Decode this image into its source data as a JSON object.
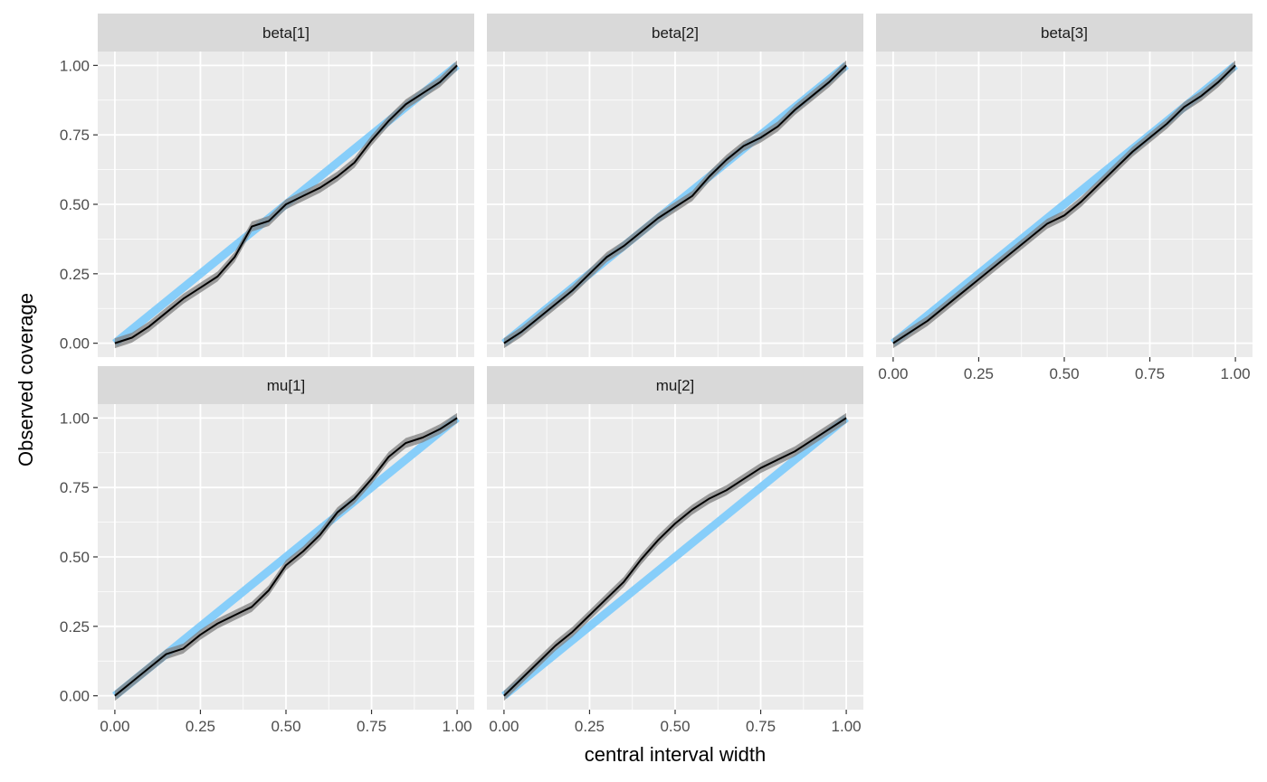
{
  "chart_data": {
    "type": "line",
    "xlabel": "central interval width",
    "ylabel": "Observed coverage",
    "xlim": [
      0,
      1
    ],
    "ylim": [
      0,
      1
    ],
    "x_ticks": [
      "0.00",
      "0.25",
      "0.50",
      "0.75",
      "1.00"
    ],
    "y_ticks": [
      "0.00",
      "0.25",
      "0.50",
      "0.75",
      "1.00"
    ],
    "grid": true,
    "reference_band": {
      "description": "ideal coverage diagonal",
      "color": "#87CEFA"
    },
    "ribbon_color": "#7f7f7f",
    "line_color": "#000000",
    "panels": [
      {
        "name": "beta[1]",
        "x": [
          0.0,
          0.05,
          0.1,
          0.15,
          0.2,
          0.25,
          0.3,
          0.35,
          0.4,
          0.45,
          0.5,
          0.55,
          0.6,
          0.65,
          0.7,
          0.75,
          0.8,
          0.85,
          0.9,
          0.95,
          1.0
        ],
        "y": [
          0.0,
          0.02,
          0.06,
          0.11,
          0.16,
          0.2,
          0.24,
          0.31,
          0.42,
          0.44,
          0.5,
          0.53,
          0.56,
          0.6,
          0.65,
          0.73,
          0.8,
          0.86,
          0.9,
          0.94,
          1.0
        ]
      },
      {
        "name": "beta[2]",
        "x": [
          0.0,
          0.05,
          0.1,
          0.15,
          0.2,
          0.25,
          0.3,
          0.35,
          0.4,
          0.45,
          0.5,
          0.55,
          0.6,
          0.65,
          0.7,
          0.75,
          0.8,
          0.85,
          0.9,
          0.95,
          1.0
        ],
        "y": [
          0.0,
          0.04,
          0.09,
          0.14,
          0.19,
          0.25,
          0.31,
          0.35,
          0.4,
          0.45,
          0.49,
          0.53,
          0.6,
          0.66,
          0.71,
          0.74,
          0.78,
          0.84,
          0.89,
          0.94,
          1.0
        ]
      },
      {
        "name": "beta[3]",
        "x": [
          0.0,
          0.05,
          0.1,
          0.15,
          0.2,
          0.25,
          0.3,
          0.35,
          0.4,
          0.45,
          0.5,
          0.55,
          0.6,
          0.65,
          0.7,
          0.75,
          0.8,
          0.85,
          0.9,
          0.95,
          1.0
        ],
        "y": [
          0.0,
          0.04,
          0.08,
          0.13,
          0.18,
          0.23,
          0.28,
          0.33,
          0.38,
          0.43,
          0.46,
          0.51,
          0.57,
          0.63,
          0.69,
          0.74,
          0.79,
          0.85,
          0.89,
          0.94,
          1.0
        ]
      },
      {
        "name": "mu[1]",
        "x": [
          0.0,
          0.05,
          0.1,
          0.15,
          0.2,
          0.25,
          0.3,
          0.35,
          0.4,
          0.45,
          0.5,
          0.55,
          0.6,
          0.65,
          0.7,
          0.75,
          0.8,
          0.85,
          0.9,
          0.95,
          1.0
        ],
        "y": [
          0.0,
          0.05,
          0.1,
          0.15,
          0.17,
          0.22,
          0.26,
          0.29,
          0.32,
          0.38,
          0.47,
          0.52,
          0.58,
          0.66,
          0.71,
          0.78,
          0.86,
          0.91,
          0.93,
          0.96,
          1.0
        ]
      },
      {
        "name": "mu[2]",
        "x": [
          0.0,
          0.05,
          0.1,
          0.15,
          0.2,
          0.25,
          0.3,
          0.35,
          0.4,
          0.45,
          0.5,
          0.55,
          0.6,
          0.65,
          0.7,
          0.75,
          0.8,
          0.85,
          0.9,
          0.95,
          1.0
        ],
        "y": [
          0.0,
          0.06,
          0.12,
          0.18,
          0.23,
          0.29,
          0.35,
          0.41,
          0.49,
          0.56,
          0.62,
          0.67,
          0.71,
          0.74,
          0.78,
          0.82,
          0.85,
          0.88,
          0.92,
          0.96,
          1.0
        ]
      }
    ]
  }
}
